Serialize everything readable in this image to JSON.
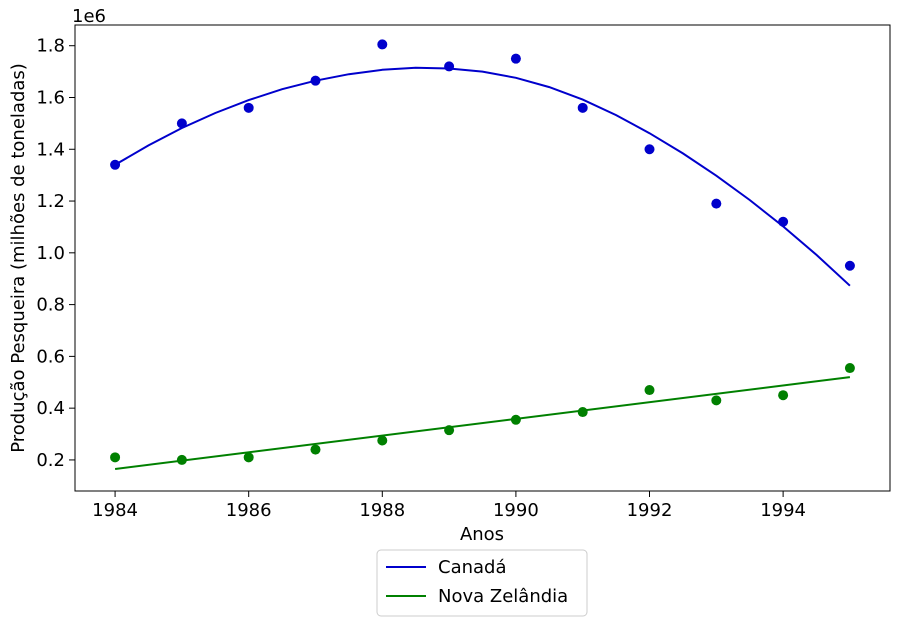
{
  "chart_data": {
    "type": "scatter",
    "xlabel": "Anos",
    "ylabel": "Produção Pesqueira (milhões de toneladas)",
    "y_offset_label": "1e6",
    "xlim": [
      1983.4,
      1995.6
    ],
    "ylim": [
      80000,
      1880000
    ],
    "xticks": [
      1984,
      1986,
      1988,
      1990,
      1992,
      1994
    ],
    "xtick_labels": [
      "1984",
      "1986",
      "1988",
      "1990",
      "1992",
      "1994"
    ],
    "yticks": [
      200000,
      400000,
      600000,
      800000,
      1000000,
      1200000,
      1400000,
      1600000,
      1800000
    ],
    "ytick_labels": [
      "0.2",
      "0.4",
      "0.6",
      "0.8",
      "1.0",
      "1.2",
      "1.4",
      "1.6",
      "1.8"
    ],
    "grid": false,
    "legend_position": "below",
    "series": [
      {
        "name": "Canadá",
        "color": "#0000cc",
        "fit": "quadratic",
        "x": [
          1984,
          1985,
          1986,
          1987,
          1988,
          1989,
          1990,
          1991,
          1992,
          1993,
          1994,
          1995
        ],
        "y": [
          1340000,
          1500000,
          1560000,
          1665000,
          1805000,
          1720000,
          1750000,
          1560000,
          1400000,
          1190000,
          1120000,
          950000
        ],
        "fit_points": [
          [
            1984,
            1340000
          ],
          [
            1984.5,
            1415000
          ],
          [
            1985,
            1482000
          ],
          [
            1985.5,
            1540000
          ],
          [
            1986,
            1590000
          ],
          [
            1986.5,
            1632000
          ],
          [
            1987,
            1665000
          ],
          [
            1987.5,
            1690000
          ],
          [
            1988,
            1707000
          ],
          [
            1988.5,
            1715000
          ],
          [
            1989,
            1712000
          ],
          [
            1989.5,
            1700000
          ],
          [
            1990,
            1676000
          ],
          [
            1990.5,
            1640000
          ],
          [
            1991,
            1592000
          ],
          [
            1991.5,
            1532000
          ],
          [
            1992,
            1462000
          ],
          [
            1992.5,
            1384000
          ],
          [
            1993,
            1298000
          ],
          [
            1993.5,
            1204000
          ],
          [
            1994,
            1102000
          ],
          [
            1994.5,
            992000
          ],
          [
            1995,
            873000
          ]
        ]
      },
      {
        "name": "Nova Zelândia",
        "color": "#008000",
        "fit": "linear",
        "x": [
          1984,
          1985,
          1986,
          1987,
          1988,
          1989,
          1990,
          1991,
          1992,
          1993,
          1994,
          1995
        ],
        "y": [
          210000,
          200000,
          210000,
          240000,
          275000,
          315000,
          355000,
          385000,
          470000,
          430000,
          450000,
          555000
        ],
        "fit_points": [
          [
            1984,
            165000
          ],
          [
            1995,
            520000
          ]
        ]
      }
    ]
  }
}
